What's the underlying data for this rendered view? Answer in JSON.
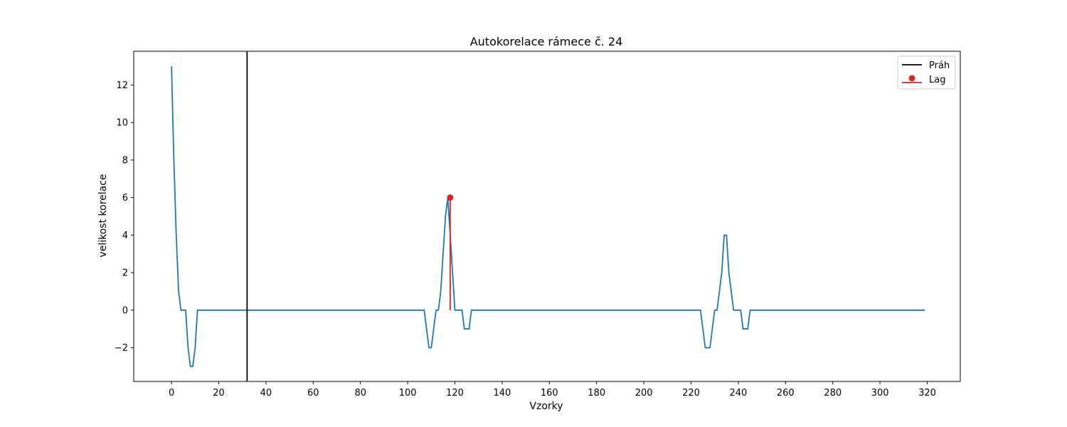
{
  "chart_data": {
    "type": "line",
    "title": "Autokorelace rámece č. 24",
    "xlabel": "Vzorky",
    "ylabel": "velikost korelace",
    "xlim": [
      -16,
      334
    ],
    "ylim": [
      -3.8,
      13.8
    ],
    "x_ticks": [
      0,
      20,
      40,
      60,
      80,
      100,
      120,
      140,
      160,
      180,
      200,
      220,
      240,
      260,
      280,
      300,
      320
    ],
    "y_ticks": [
      -2,
      0,
      2,
      4,
      6,
      8,
      10,
      12
    ],
    "y_tick_labels": [
      "−2",
      "0",
      "2",
      "4",
      "6",
      "8",
      "10",
      "12"
    ],
    "grid": false,
    "legend_position": "top-right",
    "series": [
      {
        "kind": "line",
        "color": "#1f77b4",
        "x": [
          0,
          1,
          2,
          3,
          4,
          5,
          6,
          7,
          8,
          9,
          10,
          11,
          107,
          108,
          109,
          110,
          111,
          112,
          113,
          114,
          115,
          116,
          117,
          118,
          119,
          120,
          121,
          122,
          123,
          124,
          125,
          126,
          127,
          128,
          224,
          225,
          226,
          227,
          228,
          229,
          230,
          231,
          232,
          233,
          234,
          235,
          236,
          237,
          238,
          239,
          240,
          241,
          242,
          243,
          244,
          245,
          246,
          319
        ],
        "y": [
          13,
          8,
          4,
          1,
          0,
          0,
          0,
          -2,
          -3,
          -3,
          -2,
          0,
          0,
          -1,
          -2,
          -2,
          -1,
          0,
          0,
          1,
          3,
          5,
          6,
          4,
          2,
          0,
          0,
          0,
          0,
          -1,
          -1,
          -1,
          0,
          0,
          0,
          -1,
          -2,
          -2,
          -2,
          -1,
          0,
          0,
          1,
          2,
          4,
          4,
          2,
          1,
          0,
          0,
          0,
          0,
          -1,
          -1,
          -1,
          0,
          0,
          0
        ]
      },
      {
        "kind": "vline",
        "name": "Práh",
        "color": "#000000",
        "x": 32
      },
      {
        "kind": "stem",
        "name": "Lag",
        "color": "#d62728",
        "x": 118,
        "y": 6
      }
    ]
  }
}
